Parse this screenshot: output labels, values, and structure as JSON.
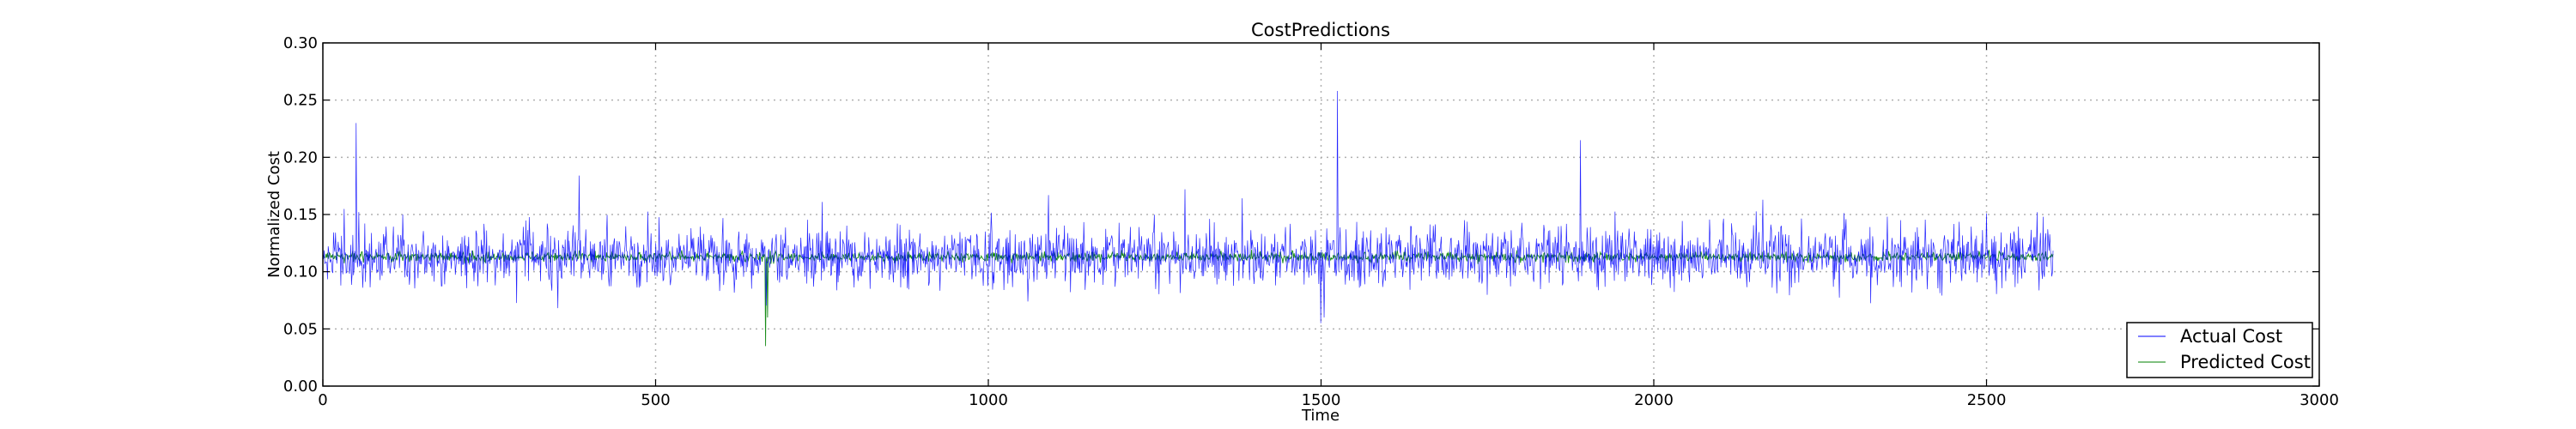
{
  "chart_data": {
    "type": "line",
    "title": "CostPredictions",
    "xlabel": "Time",
    "ylabel": "Normalized Cost",
    "xlim": [
      0,
      3000
    ],
    "ylim": [
      0.0,
      0.3
    ],
    "xticks": [
      "0",
      "500",
      "1000",
      "1500",
      "2000",
      "2500",
      "3000"
    ],
    "yticks": [
      "0.00",
      "0.05",
      "0.10",
      "0.15",
      "0.20",
      "0.25",
      "0.30"
    ],
    "grid": true,
    "legend_position": "lower-right",
    "series": [
      {
        "name": "Actual Cost",
        "color": "#0000ff",
        "x_range": [
          0,
          2600
        ],
        "samples": 2600,
        "baseline": 0.113,
        "noise_amplitude": 0.018,
        "spikes": [
          [
            50,
            0.23
          ],
          [
            120,
            0.15
          ],
          [
            385,
            0.184
          ],
          [
            750,
            0.161
          ],
          [
            1090,
            0.167
          ],
          [
            1295,
            0.172
          ],
          [
            1500,
            0.055
          ],
          [
            1505,
            0.06
          ],
          [
            1525,
            0.258
          ],
          [
            1890,
            0.215
          ],
          [
            2500,
            0.151
          ],
          [
            2585,
            0.148
          ]
        ]
      },
      {
        "name": "Predicted Cost",
        "color": "#008000",
        "x_range": [
          0,
          2600
        ],
        "samples": 2600,
        "baseline": 0.113,
        "noise_amplitude": 0.003,
        "spikes": [
          [
            665,
            0.035
          ],
          [
            668,
            0.06
          ]
        ]
      }
    ]
  }
}
